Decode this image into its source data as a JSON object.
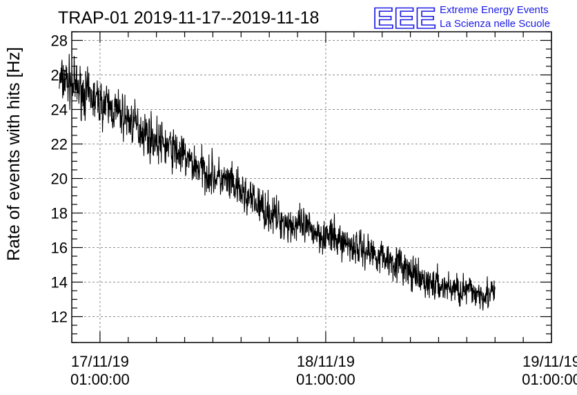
{
  "header": {
    "title": "TRAP-01 2019-11-17--2019-11-18",
    "logo": {
      "mark": "EEE",
      "line1": "Extreme Energy Events",
      "line2": "La Scienza nelle Scuole",
      "color": "#1a1ae6"
    }
  },
  "chart_data": {
    "type": "line",
    "title": "TRAP-01 2019-11-17--2019-11-18",
    "xlabel": "",
    "ylabel": "Rate of events with hits [Hz]",
    "x_ticks": [
      {
        "date": "17/11/19",
        "time": "01:00:00"
      },
      {
        "date": "18/11/19",
        "time": "01:00:00"
      },
      {
        "date": "19/11/19",
        "time": "01:00:00"
      }
    ],
    "xlim": [
      "2019-11-16 22:00:00",
      "2019-11-19 01:00:00"
    ],
    "y_ticks": [
      12,
      14,
      16,
      18,
      20,
      22,
      24,
      26,
      28
    ],
    "ylim": [
      10.5,
      28.5
    ],
    "grid": true,
    "line_color": "#000000",
    "series": [
      {
        "x": [
          "2019-11-16 20:40:00",
          "2019-11-16 21:30:00",
          "2019-11-16 22:30:00",
          "2019-11-16 23:30:00",
          "2019-11-17 01:00:00",
          "2019-11-17 03:00:00",
          "2019-11-17 05:00:00",
          "2019-11-17 07:00:00",
          "2019-11-17 09:00:00",
          "2019-11-17 11:00:00",
          "2019-11-17 13:00:00",
          "2019-11-17 15:00:00",
          "2019-11-17 17:00:00",
          "2019-11-17 19:00:00",
          "2019-11-17 21:00:00",
          "2019-11-17 23:00:00",
          "2019-11-18 01:00:00",
          "2019-11-18 03:00:00",
          "2019-11-18 05:00:00",
          "2019-11-18 07:00:00",
          "2019-11-18 09:00:00",
          "2019-11-18 10:00:00",
          "2019-11-18 11:00:00",
          "2019-11-18 13:00:00",
          "2019-11-18 15:00:00",
          "2019-11-18 17:00:00",
          "2019-11-18 19:00:00"
        ],
        "values": [
          25.6,
          25.7,
          25.3,
          24.9,
          24.4,
          23.8,
          23.0,
          22.2,
          21.6,
          20.8,
          20.2,
          19.6,
          18.8,
          18.0,
          17.4,
          17.1,
          16.7,
          16.3,
          15.9,
          15.5,
          15.0,
          14.5,
          14.1,
          13.8,
          13.6,
          13.4,
          13.3
        ]
      }
    ]
  }
}
